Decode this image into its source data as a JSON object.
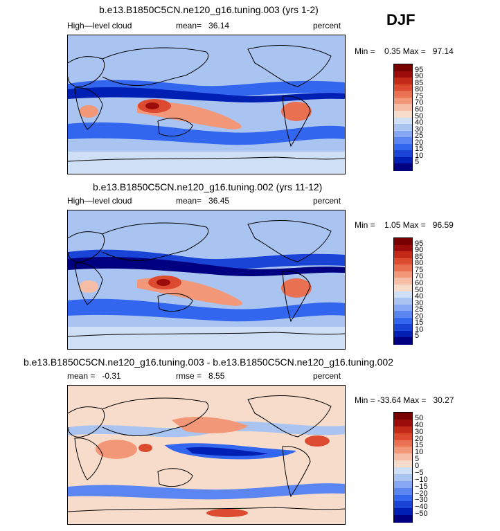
{
  "season": "DJF",
  "panels": [
    {
      "title": "b.e13.B1850C5CN.ne120_g16.tuning.003 (yrs 1-2)",
      "left_label": "High—level cloud",
      "mean_label": "mean=",
      "mean_value": "36.14",
      "units": "percent",
      "min_label": "Min =",
      "min_value": "0.35",
      "max_label": "Max =",
      "max_value": "97.14",
      "levels": [
        "95",
        "90",
        "85",
        "80",
        "75",
        "70",
        "60",
        "50",
        "40",
        "30",
        "25",
        "20",
        "15",
        "10",
        "5"
      ]
    },
    {
      "title": "b.e13.B1850C5CN.ne120_g16.tuning.002 (yrs 11-12)",
      "left_label": "High—level cloud",
      "mean_label": "mean=",
      "mean_value": "36.45",
      "units": "percent",
      "min_label": "Min =",
      "min_value": "1.05",
      "max_label": "Max =",
      "max_value": "96.59",
      "levels": [
        "95",
        "90",
        "85",
        "80",
        "75",
        "70",
        "60",
        "50",
        "40",
        "30",
        "25",
        "20",
        "15",
        "10",
        "5"
      ]
    },
    {
      "title": "b.e13.B1850C5CN.ne120_g16.tuning.003 - b.e13.B1850C5CN.ne120_g16.tuning.002",
      "mean_label": "mean =",
      "mean_value": "-0.31",
      "rmse_label": "rmse =",
      "rmse_value": "8.55",
      "units": "percent",
      "min_label": "Min =",
      "min_value": "-33.64",
      "max_label": "Max =",
      "max_value": "30.27",
      "levels": [
        "50",
        "40",
        "30",
        "20",
        "15",
        "10",
        "5",
        "0",
        "−5",
        "−10",
        "−15",
        "−20",
        "−30",
        "−40",
        "−50"
      ]
    }
  ],
  "chart_data": [
    {
      "type": "heatmap",
      "title": "b.e13.B1850C5CN.ne120_g16.tuning.003 (yrs 1-2)",
      "variable": "High-level cloud",
      "units": "percent",
      "mean": 36.14,
      "min": 0.35,
      "max": 97.14,
      "contour_levels": [
        5,
        10,
        15,
        20,
        25,
        30,
        40,
        50,
        60,
        70,
        75,
        80,
        85,
        90,
        95
      ],
      "colors": [
        "#000080",
        "#0020b4",
        "#1a44d6",
        "#3366ee",
        "#5b86f2",
        "#86a8f4",
        "#aac4f2",
        "#cfe0f6",
        "#f7dccc",
        "#f6bda6",
        "#f29878",
        "#ea7052",
        "#dc4a30",
        "#c42a18",
        "#9c0c0a",
        "#780000"
      ]
    },
    {
      "type": "heatmap",
      "title": "b.e13.B1850C5CN.ne120_g16.tuning.002 (yrs 11-12)",
      "variable": "High-level cloud",
      "units": "percent",
      "mean": 36.45,
      "min": 1.05,
      "max": 96.59,
      "contour_levels": [
        5,
        10,
        15,
        20,
        25,
        30,
        40,
        50,
        60,
        70,
        75,
        80,
        85,
        90,
        95
      ],
      "colors": [
        "#000080",
        "#0020b4",
        "#1a44d6",
        "#3366ee",
        "#5b86f2",
        "#86a8f4",
        "#aac4f2",
        "#cfe0f6",
        "#f7dccc",
        "#f6bda6",
        "#f29878",
        "#ea7052",
        "#dc4a30",
        "#c42a18",
        "#9c0c0a",
        "#780000"
      ]
    },
    {
      "type": "heatmap",
      "title": "b.e13.B1850C5CN.ne120_g16.tuning.003 - b.e13.B1850C5CN.ne120_g16.tuning.002",
      "units": "percent",
      "mean": -0.31,
      "rmse": 8.55,
      "min": -33.64,
      "max": 30.27,
      "contour_levels": [
        -50,
        -40,
        -30,
        -20,
        -15,
        -10,
        -5,
        0,
        5,
        10,
        15,
        20,
        30,
        40,
        50
      ],
      "colors": [
        "#000080",
        "#0020b4",
        "#1a44d6",
        "#3366ee",
        "#5b86f2",
        "#86a8f4",
        "#aac4f2",
        "#cfe0f6",
        "#f7dccc",
        "#f6bda6",
        "#f29878",
        "#ea7052",
        "#dc4a30",
        "#c42a18",
        "#9c0c0a",
        "#780000"
      ]
    }
  ]
}
